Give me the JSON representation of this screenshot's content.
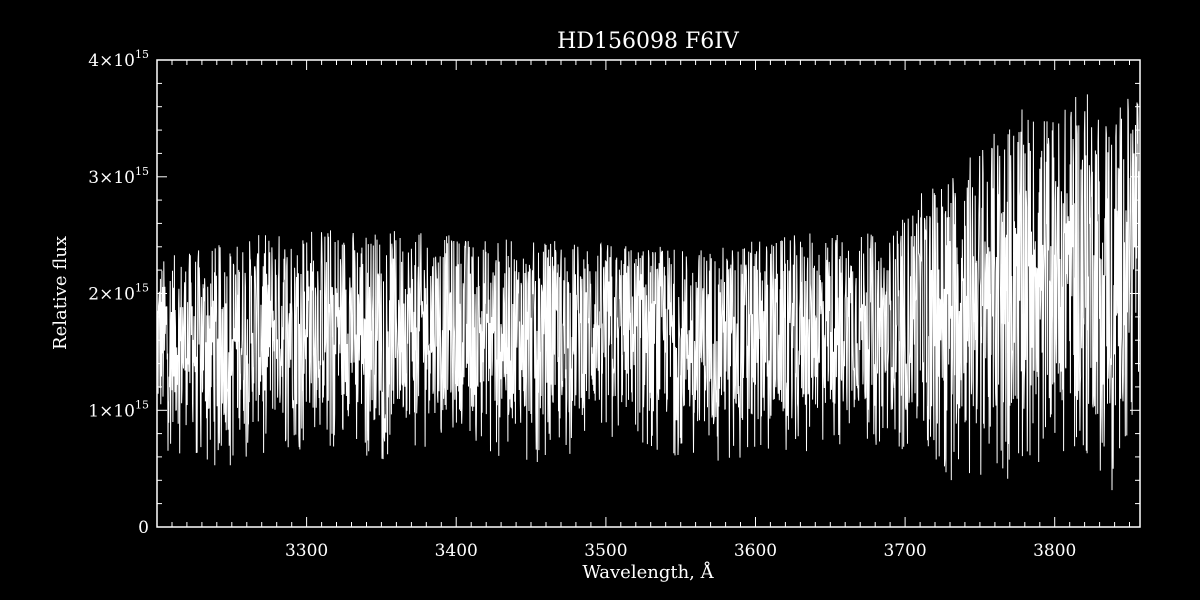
{
  "chart_data": {
    "type": "line",
    "title": "HD156098   F6IV",
    "xlabel": "Wavelength, Å",
    "ylabel": "Relative flux",
    "xlim": [
      3200,
      3857
    ],
    "ylim": [
      0,
      4000000000000000.0
    ],
    "grid": false,
    "x_ticks": [
      {
        "value": 3300,
        "label": "3300"
      },
      {
        "value": 3400,
        "label": "3400"
      },
      {
        "value": 3500,
        "label": "3500"
      },
      {
        "value": 3600,
        "label": "3600"
      },
      {
        "value": 3700,
        "label": "3700"
      },
      {
        "value": 3800,
        "label": "3800"
      }
    ],
    "y_ticks": [
      {
        "value": 0,
        "label": "0",
        "mantissa": "0",
        "exponent": ""
      },
      {
        "value": 1000000000000000.0,
        "label": "1×10^15",
        "mantissa": "1×10",
        "exponent": "15"
      },
      {
        "value": 2000000000000000.0,
        "label": "2×10^15",
        "mantissa": "2×10",
        "exponent": "15"
      },
      {
        "value": 3000000000000000.0,
        "label": "3×10^15",
        "mantissa": "3×10",
        "exponent": "15"
      },
      {
        "value": 4000000000000000.0,
        "label": "4×10^15",
        "mantissa": "4×10",
        "exponent": "15"
      }
    ],
    "series": [
      {
        "envelope": [
          {
            "x": 3200,
            "y_low": 900000000000000.0,
            "y_high": 2300000000000000.0
          },
          {
            "x": 3250,
            "y_low": 800000000000000.0,
            "y_high": 2450000000000000.0
          },
          {
            "x": 3300,
            "y_low": 1000000000000000.0,
            "y_high": 2600000000000000.0
          },
          {
            "x": 3350,
            "y_low": 900000000000000.0,
            "y_high": 2550000000000000.0
          },
          {
            "x": 3400,
            "y_low": 1000000000000000.0,
            "y_high": 2500000000000000.0
          },
          {
            "x": 3450,
            "y_low": 850000000000000.0,
            "y_high": 2450000000000000.0
          },
          {
            "x": 3500,
            "y_low": 1000000000000000.0,
            "y_high": 2450000000000000.0
          },
          {
            "x": 3550,
            "y_low": 900000000000000.0,
            "y_high": 2400000000000000.0
          },
          {
            "x": 3600,
            "y_low": 850000000000000.0,
            "y_high": 2450000000000000.0
          },
          {
            "x": 3650,
            "y_low": 1000000000000000.0,
            "y_high": 2550000000000000.0
          },
          {
            "x": 3690,
            "y_low": 1000000000000000.0,
            "y_high": 2500000000000000.0
          },
          {
            "x": 3710,
            "y_low": 900000000000000.0,
            "y_high": 2850000000000000.0
          },
          {
            "x": 3750,
            "y_low": 800000000000000.0,
            "y_high": 3300000000000000.0
          },
          {
            "x": 3780,
            "y_low": 1000000000000000.0,
            "y_high": 3600000000000000.0
          },
          {
            "x": 3800,
            "y_low": 1100000000000000.0,
            "y_high": 3550000000000000.0
          },
          {
            "x": 3820,
            "y_low": 1000000000000000.0,
            "y_high": 3750000000000000.0
          },
          {
            "x": 3840,
            "y_low": 800000000000000.0,
            "y_high": 3600000000000000.0
          },
          {
            "x": 3857,
            "y_low": 1600000000000000.0,
            "y_high": 3800000000000000.0
          }
        ]
      }
    ]
  }
}
